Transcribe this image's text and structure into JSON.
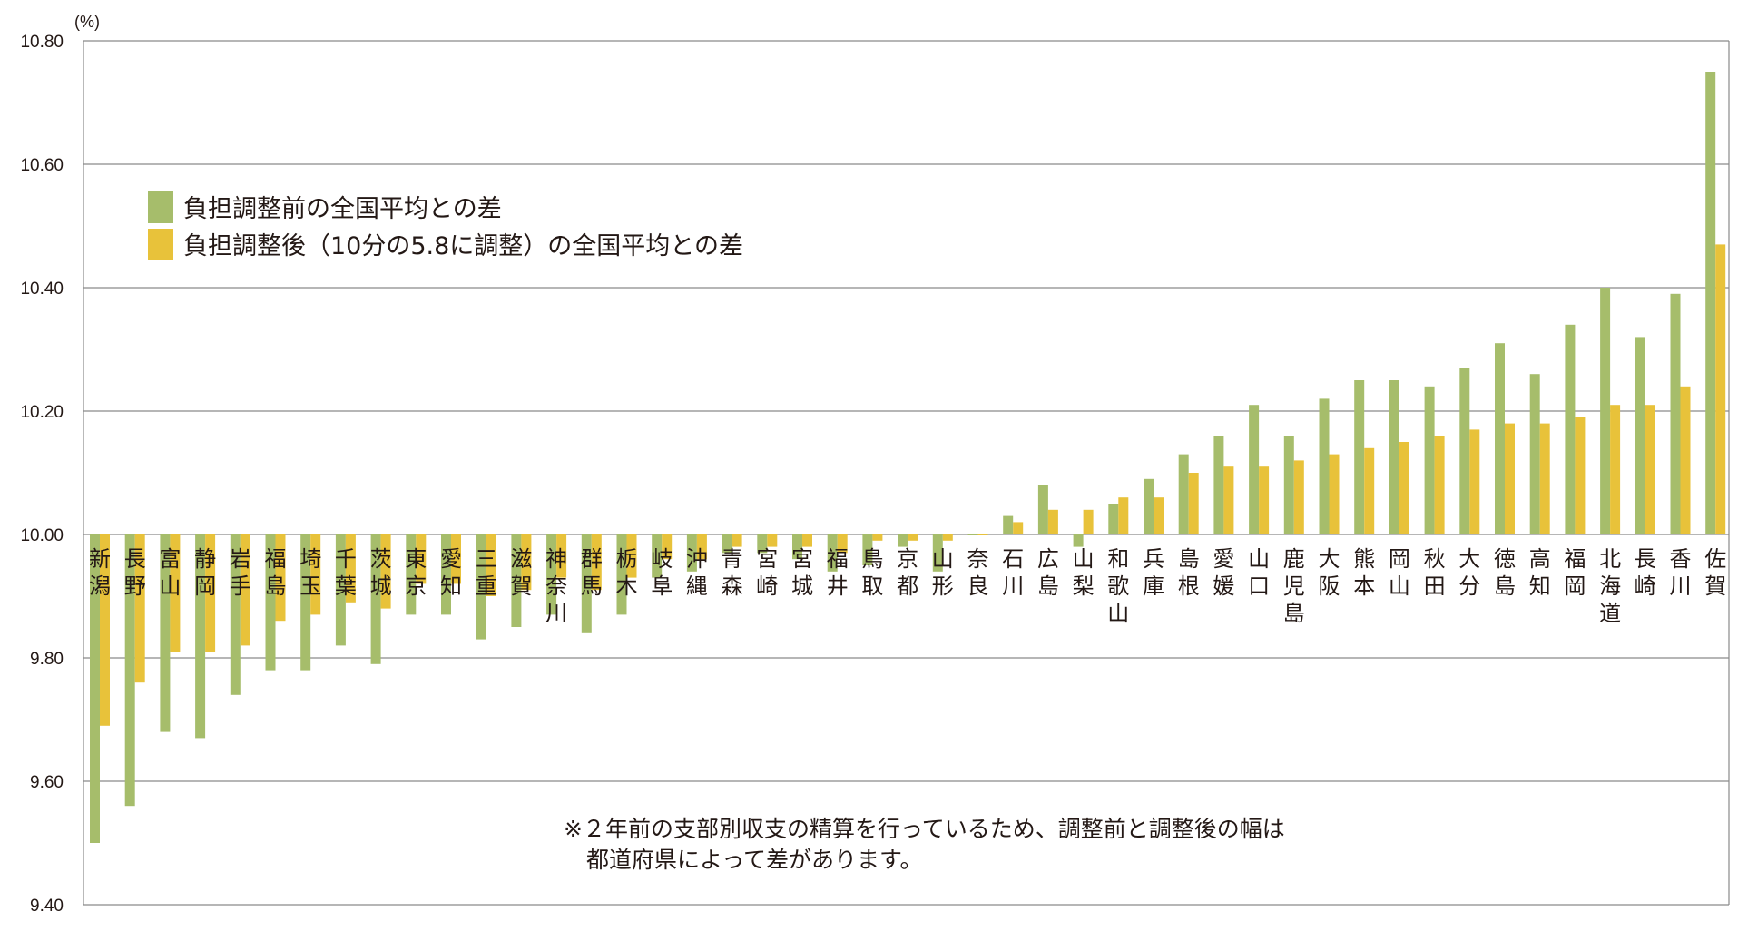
{
  "chart_data": {
    "type": "bar",
    "unit_label": "(%)",
    "baseline": 10.0,
    "ylim": [
      9.4,
      10.8
    ],
    "yticks": [
      "10.80",
      "10.60",
      "10.40",
      "10.20",
      "10.00",
      "9.80",
      "9.60",
      "9.40"
    ],
    "grid": true,
    "legend_position": "top-left",
    "categories": [
      "新潟",
      "長野",
      "富山",
      "静岡",
      "岩手",
      "福島",
      "埼玉",
      "千葉",
      "茨城",
      "東京",
      "愛知",
      "三重",
      "滋賀",
      "神奈川",
      "群馬",
      "栃木",
      "岐阜",
      "沖縄",
      "青森",
      "宮崎",
      "宮城",
      "福井",
      "鳥取",
      "京都",
      "山形",
      "奈良",
      "石川",
      "広島",
      "山梨",
      "和歌山",
      "兵庫",
      "島根",
      "愛媛",
      "山口",
      "鹿児島",
      "大阪",
      "熊本",
      "岡山",
      "秋田",
      "大分",
      "徳島",
      "高知",
      "福岡",
      "北海道",
      "長崎",
      "香川",
      "佐賀"
    ],
    "series": [
      {
        "name": "負担調整前の全国平均との差",
        "color": "#a6bd6b",
        "values": [
          9.5,
          9.56,
          9.68,
          9.67,
          9.74,
          9.78,
          9.78,
          9.82,
          9.79,
          9.87,
          9.87,
          9.83,
          9.85,
          9.87,
          9.84,
          9.87,
          9.93,
          9.94,
          9.97,
          9.97,
          9.96,
          9.94,
          9.95,
          9.98,
          9.94,
          10.0,
          10.03,
          10.08,
          9.98,
          10.05,
          10.09,
          10.13,
          10.16,
          10.21,
          10.16,
          10.22,
          10.25,
          10.25,
          10.24,
          10.27,
          10.31,
          10.26,
          10.34,
          10.4,
          10.32,
          10.39,
          10.75
        ]
      },
      {
        "name": "負担調整後（10分の5.8に調整）の全国平均との差",
        "color": "#e8c23a",
        "values": [
          9.69,
          9.76,
          9.81,
          9.81,
          9.82,
          9.86,
          9.87,
          9.89,
          9.88,
          9.92,
          9.92,
          9.9,
          9.91,
          9.93,
          9.91,
          9.93,
          9.96,
          9.96,
          9.98,
          9.98,
          9.98,
          9.97,
          9.99,
          9.99,
          9.99,
          10.0,
          10.02,
          10.04,
          10.04,
          10.06,
          10.06,
          10.1,
          10.11,
          10.11,
          10.12,
          10.13,
          10.14,
          10.15,
          10.16,
          10.17,
          10.18,
          10.18,
          10.19,
          10.21,
          10.21,
          10.24,
          10.47
        ]
      }
    ],
    "annotation": {
      "line1": "※２年前の支部別収支の精算を行っているため、調整前と調整後の幅は",
      "line2": "都道府県によって差があります。"
    }
  }
}
